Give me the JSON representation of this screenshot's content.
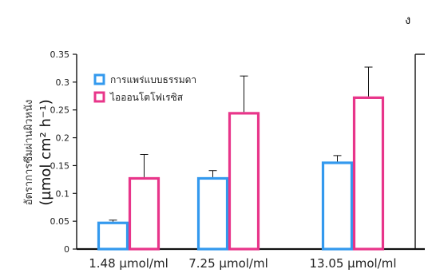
{
  "corner_mark": "ง",
  "chart_data": {
    "type": "bar",
    "categories": [
      "1.48 µmol/ml",
      "7.25 µmol/ml",
      "13.05 µmol/ml"
    ],
    "series": [
      {
        "name": "การแพร่แบบธรรมดา",
        "values": [
          0.047,
          0.127,
          0.155
        ],
        "errors": [
          0.005,
          0.014,
          0.013
        ],
        "color": "#3399ee"
      },
      {
        "name": "ไอออนโตโฟเรซิส",
        "values": [
          0.127,
          0.244,
          0.272
        ],
        "errors": [
          0.043,
          0.067,
          0.055
        ],
        "color": "#e8358a"
      }
    ],
    "ylabel_thai": "อัตราการซึมผ่านผิวหนัง",
    "ylabel_unit": "(µmol cm² h⁻¹)",
    "yticks": [
      "0",
      "0.05",
      "0.1",
      "0.15",
      "0.2",
      "0.25",
      "0.3",
      "0.35"
    ],
    "ylim": [
      0,
      0.35
    ],
    "legend_position": "top-left",
    "grid": false
  }
}
